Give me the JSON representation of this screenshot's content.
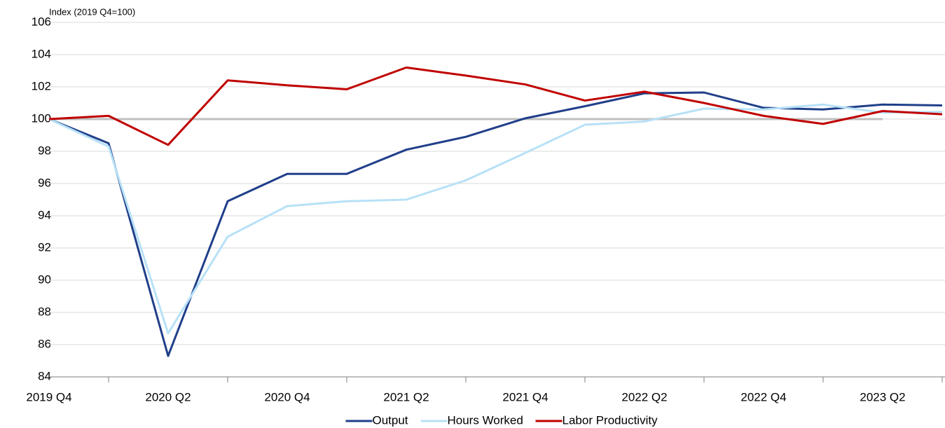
{
  "chart_data": {
    "type": "line",
    "y_axis_label": "Index (2019 Q4=100)",
    "categories": [
      "2019 Q4",
      null,
      "2020 Q2",
      null,
      "2020 Q4",
      null,
      "2021 Q2",
      null,
      "2021 Q4",
      null,
      "2022 Q2",
      null,
      "2022 Q4",
      null,
      "2023 Q2",
      null
    ],
    "series": [
      {
        "name": "Output",
        "color": "#203f8a",
        "values": [
          100,
          98.5,
          85.3,
          94.9,
          96.6,
          96.6,
          98.1,
          98.9,
          100.05,
          100.8,
          101.6,
          101.65,
          100.7,
          100.6,
          100.9,
          100.85
        ]
      },
      {
        "name": "Hours Worked",
        "color": "#b7e1f7",
        "values": [
          100,
          98.3,
          86.7,
          92.7,
          94.6,
          94.9,
          95.0,
          96.2,
          97.9,
          99.65,
          99.85,
          100.65,
          100.6,
          100.9,
          100.4,
          100.45
        ]
      },
      {
        "name": "Labor Productivity",
        "color": "#c00000",
        "values": [
          100,
          100.2,
          98.4,
          102.4,
          102.1,
          101.85,
          103.2,
          102.7,
          102.15,
          101.15,
          101.7,
          101.0,
          100.2,
          99.7,
          100.5,
          100.3
        ]
      }
    ],
    "baseline": {
      "value": 100,
      "color": "#bfbfbf",
      "from": "2019 Q4",
      "to": "2023 Q2"
    },
    "ylim": [
      84,
      106
    ],
    "yticks": [
      84,
      86,
      88,
      90,
      92,
      94,
      96,
      98,
      100,
      102,
      104,
      106
    ],
    "grid": true,
    "legend": "bottom"
  }
}
